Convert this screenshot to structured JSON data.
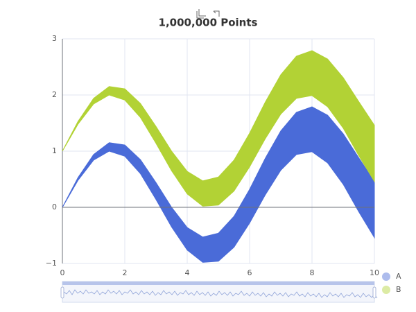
{
  "chart_data": {
    "type": "band",
    "title": "1,000,000 Points",
    "x": [
      0,
      0.5,
      1,
      1.5,
      2,
      2.5,
      3,
      3.5,
      4,
      4.5,
      5,
      5.5,
      6,
      6.5,
      7,
      7.5,
      8,
      8.5,
      9,
      9.5,
      10
    ],
    "series": [
      {
        "name": "A",
        "color": "#4a6bd8",
        "lower": [
          0,
          0.48,
          0.84,
          1.0,
          0.91,
          0.6,
          0.14,
          -0.35,
          -0.76,
          -0.98,
          -0.96,
          -0.71,
          -0.28,
          0.22,
          0.66,
          0.94,
          0.99,
          0.79,
          0.41,
          -0.08,
          -0.54
        ],
        "upper": [
          0,
          0.53,
          0.94,
          1.15,
          1.11,
          0.85,
          0.44,
          0.0,
          -0.36,
          -0.53,
          -0.46,
          -0.16,
          0.32,
          0.87,
          1.36,
          1.69,
          1.79,
          1.64,
          1.31,
          0.88,
          0.46
        ]
      },
      {
        "name": "B",
        "color": "#b2d235",
        "lower": [
          1,
          1.48,
          1.84,
          2.0,
          1.91,
          1.6,
          1.14,
          0.65,
          0.24,
          0.02,
          0.04,
          0.29,
          0.72,
          1.22,
          1.66,
          1.94,
          1.99,
          1.79,
          1.41,
          0.92,
          0.46
        ],
        "upper": [
          1,
          1.53,
          1.94,
          2.15,
          2.11,
          1.85,
          1.44,
          1.0,
          0.64,
          0.47,
          0.54,
          0.84,
          1.32,
          1.87,
          2.36,
          2.69,
          2.79,
          2.64,
          2.31,
          1.88,
          1.46
        ]
      }
    ],
    "xlim": [
      0,
      10
    ],
    "xticks": [
      0,
      2,
      4,
      6,
      8,
      10
    ],
    "ylim": [
      -1,
      3
    ],
    "yticks": [
      {
        "value": -1,
        "label": "−1"
      },
      0,
      1,
      2,
      3
    ],
    "grid": true
  }
}
